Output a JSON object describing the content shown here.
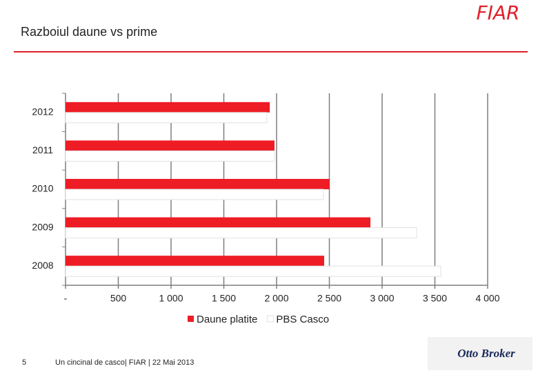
{
  "chart_data": {
    "type": "hbar",
    "title": "Razboiul daune vs prime",
    "categories": [
      "2012",
      "2011",
      "2010",
      "2009",
      "2008"
    ],
    "series": [
      {
        "name": "Daune platite",
        "color": "#ee1c25",
        "values": [
          1935,
          1980,
          2503,
          2889,
          2451
        ]
      },
      {
        "name": "PBS Casco",
        "color": "#ffffff",
        "values": [
          1908,
          1980,
          2444,
          3327,
          3556
        ]
      }
    ],
    "xlim": [
      0,
      4000
    ],
    "xticks": [
      {
        "value": 0,
        "label": "-"
      },
      500,
      {
        "value": 1000,
        "label": "1 000"
      },
      {
        "value": 1500,
        "label": "1 500"
      },
      {
        "value": 2000,
        "label": "2 000"
      },
      {
        "value": 2500,
        "label": "2 500"
      },
      {
        "value": 3000,
        "label": "3 000"
      },
      {
        "value": 3500,
        "label": "3 500"
      },
      {
        "value": 4000,
        "label": "4 000"
      }
    ],
    "grid": true,
    "legend": "bottom"
  },
  "slide": {
    "page_number": "5",
    "footer": "Un cincinal de casco| FIAR | 22 Mai 2013",
    "logo": "FIAR",
    "partner_logo": "Otto Broker"
  }
}
